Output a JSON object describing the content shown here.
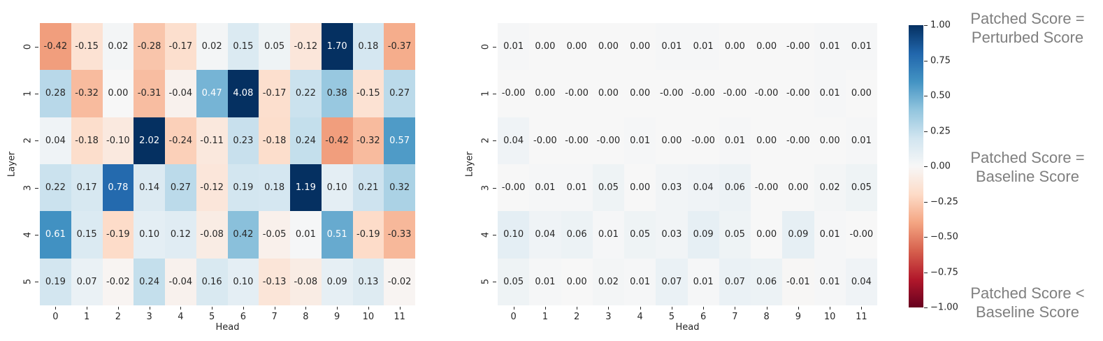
{
  "colors": {
    "background": "#ffffff",
    "tick_text": "#262626",
    "annotation_text_dark": "#262626",
    "annotation_text_light": "#ffffff",
    "legend_text": "#7f7f7f",
    "colormap_stops": [
      "#67001f",
      "#b2182b",
      "#d6604d",
      "#f4a582",
      "#fddbc7",
      "#f7f7f7",
      "#d1e5f0",
      "#92c5de",
      "#4393c3",
      "#2166ac",
      "#053061"
    ]
  },
  "chart_data": [
    {
      "type": "heatmap",
      "name": "left-heatmap",
      "xlabel": "Head",
      "ylabel": "Layer",
      "x_ticks": [
        "0",
        "1",
        "2",
        "3",
        "4",
        "5",
        "6",
        "7",
        "8",
        "9",
        "10",
        "11"
      ],
      "y_ticks": [
        "0",
        "1",
        "2",
        "3",
        "4",
        "5"
      ],
      "vmin": -1,
      "vmax": 1,
      "colormap": "RdBu",
      "annotated": true,
      "values": [
        [
          "-0.42",
          "-0.15",
          "0.02",
          "-0.28",
          "-0.17",
          "0.02",
          "0.15",
          "0.05",
          "-0.12",
          "1.70",
          "0.18",
          "-0.37"
        ],
        [
          "0.28",
          "-0.32",
          "0.00",
          "-0.31",
          "-0.04",
          "0.47",
          "4.08",
          "-0.17",
          "0.22",
          "0.38",
          "-0.15",
          "0.27"
        ],
        [
          "0.04",
          "-0.18",
          "-0.10",
          "2.02",
          "-0.24",
          "-0.11",
          "0.23",
          "-0.18",
          "0.24",
          "-0.42",
          "-0.32",
          "0.57"
        ],
        [
          "0.22",
          "0.17",
          "0.78",
          "0.14",
          "0.27",
          "-0.12",
          "0.19",
          "0.18",
          "1.19",
          "0.10",
          "0.21",
          "0.32"
        ],
        [
          "0.61",
          "0.15",
          "-0.19",
          "0.10",
          "0.12",
          "-0.08",
          "0.42",
          "-0.05",
          "0.01",
          "0.51",
          "-0.19",
          "-0.33"
        ],
        [
          "0.19",
          "0.07",
          "-0.02",
          "0.24",
          "-0.04",
          "0.16",
          "0.10",
          "-0.13",
          "-0.08",
          "0.09",
          "0.13",
          "-0.02"
        ]
      ]
    },
    {
      "type": "heatmap",
      "name": "right-heatmap",
      "xlabel": "Head",
      "ylabel": "Layer",
      "x_ticks": [
        "0",
        "1",
        "2",
        "3",
        "4",
        "5",
        "6",
        "7",
        "8",
        "9",
        "10",
        "11"
      ],
      "y_ticks": [
        "0",
        "1",
        "2",
        "3",
        "4",
        "5"
      ],
      "vmin": -1,
      "vmax": 1,
      "colormap": "RdBu",
      "annotated": true,
      "values": [
        [
          "0.01",
          "0.00",
          "0.00",
          "0.00",
          "0.00",
          "0.01",
          "0.01",
          "0.00",
          "0.00",
          "-0.00",
          "0.01",
          "0.01"
        ],
        [
          "-0.00",
          "0.00",
          "-0.00",
          "0.00",
          "0.00",
          "-0.00",
          "-0.00",
          "-0.00",
          "-0.00",
          "-0.00",
          "0.01",
          "0.00"
        ],
        [
          "0.04",
          "-0.00",
          "-0.00",
          "-0.00",
          "0.01",
          "0.00",
          "-0.00",
          "0.01",
          "0.00",
          "-0.00",
          "0.00",
          "0.01"
        ],
        [
          "-0.00",
          "0.01",
          "0.01",
          "0.05",
          "0.00",
          "0.03",
          "0.04",
          "0.06",
          "-0.00",
          "0.00",
          "0.02",
          "0.05"
        ],
        [
          "0.10",
          "0.04",
          "0.06",
          "0.01",
          "0.05",
          "0.03",
          "0.09",
          "0.05",
          "0.00",
          "0.09",
          "0.01",
          "-0.00"
        ],
        [
          "0.05",
          "0.01",
          "0.00",
          "0.02",
          "0.01",
          "0.07",
          "0.01",
          "0.07",
          "0.06",
          "-0.01",
          "0.01",
          "0.04"
        ]
      ]
    },
    {
      "type": "colorbar",
      "name": "shared-colorbar",
      "colormap": "RdBu",
      "range": [
        -1,
        1
      ],
      "ticks": [
        "1.00",
        "0.75",
        "0.50",
        "0.25",
        "0.00",
        "−0.25",
        "−0.50",
        "−0.75",
        "−1.00"
      ]
    }
  ],
  "legend": {
    "items": [
      {
        "line1": "Patched Score =",
        "line2": "Perturbed Score"
      },
      {
        "line1": "Patched Score =",
        "line2": "Baseline Score"
      },
      {
        "line1": "Patched Score <",
        "line2": "Baseline Score"
      }
    ]
  }
}
